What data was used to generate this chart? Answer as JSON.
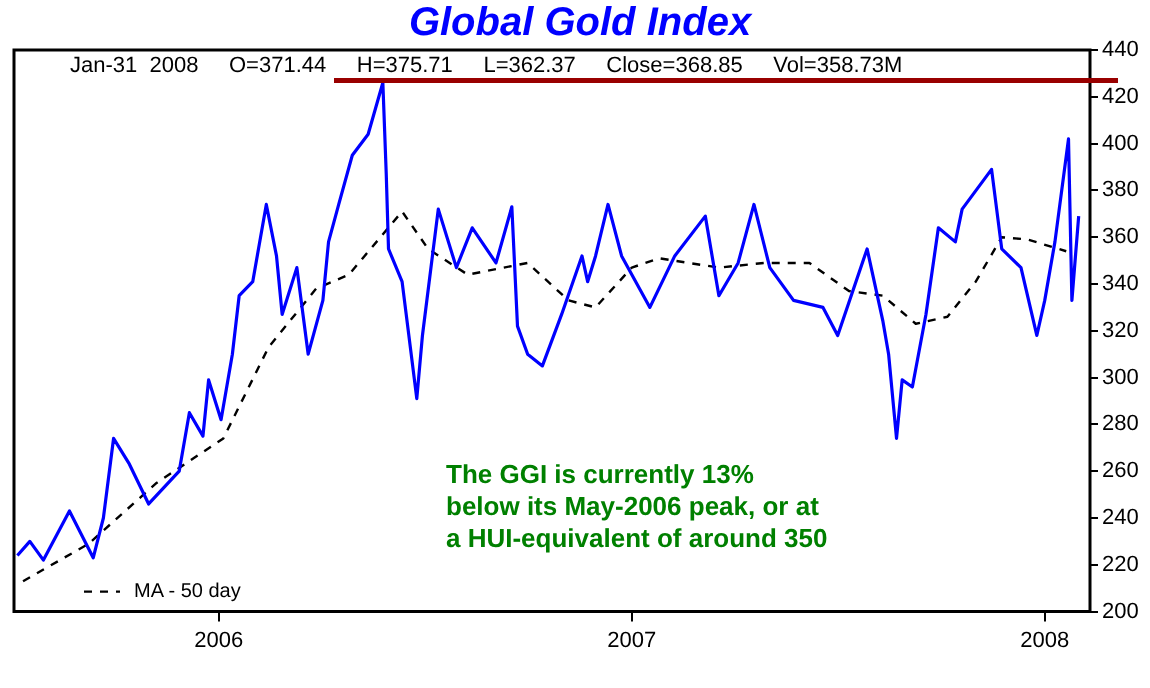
{
  "chart_data": {
    "type": "line",
    "title": "Global Gold Index",
    "annotations": [
      "Jan-31  2008     O=371.44     H=375.71     L=362.37     Close=368.85     Vol=358.73M",
      "The GGI is currently 13%\nbelow its May-2006 peak, or at\na HUI-equivalent of around 350"
    ],
    "series": [
      {
        "color": "#0000ff",
        "line_style": "solid",
        "x": [
          "2005-07-07",
          "2005-07-18",
          "2005-07-30",
          "2005-08-22",
          "2005-09-12",
          "2005-09-21",
          "2005-09-30",
          "2005-10-14",
          "2005-10-31",
          "2005-11-27",
          "2005-12-06",
          "2005-12-18",
          "2005-12-23",
          "2006-01-03",
          "2006-01-13",
          "2006-01-19",
          "2006-01-31",
          "2006-02-12",
          "2006-02-21",
          "2006-02-26",
          "2006-03-11",
          "2006-03-21",
          "2006-04-03",
          "2006-04-08",
          "2006-04-17",
          "2006-04-29",
          "2006-05-13",
          "2006-05-26",
          "2006-05-29",
          "2006-05-31",
          "2006-06-12",
          "2006-06-25",
          "2006-06-30",
          "2006-07-14",
          "2006-07-30",
          "2006-08-13",
          "2006-09-03",
          "2006-09-17",
          "2006-09-22",
          "2006-10-01",
          "2006-10-14",
          "2006-10-31",
          "2006-11-18",
          "2006-11-23",
          "2006-11-30",
          "2006-12-11",
          "2006-12-23",
          "2007-01-17",
          "2007-02-08",
          "2007-03-07",
          "2007-03-19",
          "2007-04-05",
          "2007-04-19",
          "2007-05-03",
          "2007-05-24",
          "2007-06-19",
          "2007-07-02",
          "2007-07-28",
          "2007-08-11",
          "2007-08-16",
          "2007-08-23",
          "2007-08-28",
          "2007-09-06",
          "2007-09-18",
          "2007-09-29",
          "2007-10-14",
          "2007-10-20",
          "2007-11-15",
          "2007-11-24",
          "2007-12-11",
          "2007-12-25",
          "2008-01-01",
          "2008-01-10",
          "2008-01-22",
          "2008-01-25",
          "2008-01-31"
        ],
        "values": [
          224,
          230,
          222,
          243,
          223,
          240,
          274,
          263,
          246,
          260,
          285,
          275,
          299,
          282,
          310,
          335,
          341,
          374,
          352,
          327,
          347,
          310,
          333,
          358,
          374,
          395,
          404,
          426,
          387,
          355,
          341,
          291,
          318,
          372,
          347,
          364,
          349,
          373,
          322,
          310,
          305,
          327,
          352,
          341,
          352,
          374,
          352,
          330,
          352,
          369,
          335,
          349,
          374,
          347,
          333,
          330,
          318,
          355,
          324,
          310,
          274,
          299,
          296,
          327,
          364,
          358,
          372,
          389,
          355,
          347,
          318,
          333,
          358,
          402,
          333,
          369
        ]
      },
      {
        "name": "MA - 50 day",
        "color": "#000000",
        "line_style": "dashed",
        "x": [
          "2005-07-12",
          "2005-09-08",
          "2005-11-07",
          "2006-01-05",
          "2006-02-14",
          "2006-03-28",
          "2006-04-26",
          "2006-06-12",
          "2006-07-05",
          "2006-08-09",
          "2006-10-01",
          "2006-11-06",
          "2006-11-30",
          "2007-01-01",
          "2007-01-25",
          "2007-03-19",
          "2007-04-28",
          "2007-06-07",
          "2007-07-12",
          "2007-08-11",
          "2007-09-09",
          "2007-10-07",
          "2007-11-01",
          "2007-11-24",
          "2007-12-17",
          "2008-01-20"
        ],
        "values": [
          213,
          229,
          255,
          274,
          313,
          338,
          344,
          371,
          355,
          344,
          349,
          333,
          330,
          347,
          351,
          347,
          349,
          349,
          337,
          335,
          323,
          326,
          341,
          360,
          359,
          354
        ]
      }
    ],
    "ref_lines": [
      {
        "axis": "y",
        "value": 427,
        "color": "#990000"
      }
    ],
    "xlim": [
      "2005-07-04",
      "2008-02-10"
    ],
    "xticks": [
      {
        "value": "2006-01-01",
        "label": "2006"
      },
      {
        "value": "2007-01-01",
        "label": "2007"
      },
      {
        "value": "2008-01-01",
        "label": "2008"
      }
    ],
    "ylim": [
      200,
      440
    ],
    "yticks": [
      200,
      220,
      240,
      260,
      280,
      300,
      320,
      340,
      360,
      380,
      400,
      420,
      440
    ],
    "grid": false,
    "legend": "bottom left",
    "marker": "none"
  }
}
